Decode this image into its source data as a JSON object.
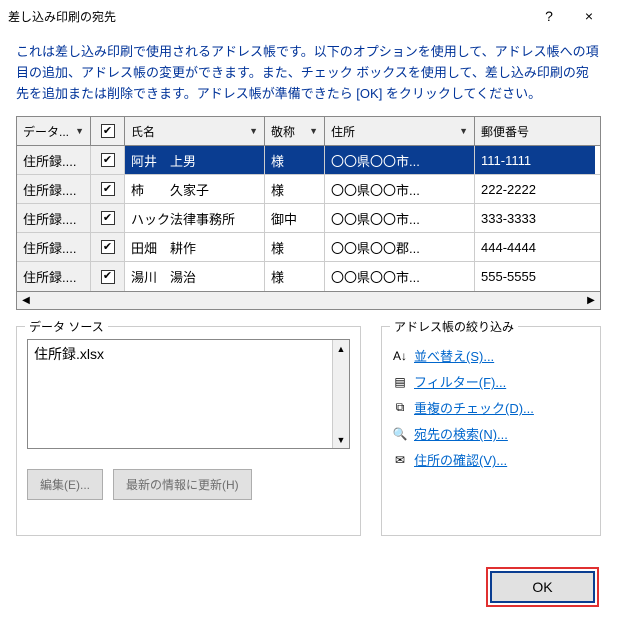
{
  "titlebar": {
    "title": "差し込み印刷の宛先",
    "help": "?",
    "close": "×"
  },
  "description": "これは差し込み印刷で使用されるアドレス帳です。以下のオプションを使用して、アドレス帳への項目の追加、アドレス帳の変更ができます。また、チェック ボックスを使用して、差し込み印刷の宛先を追加または削除できます。アドレス帳が準備できたら [OK] をクリックしてください。",
  "columns": {
    "c0": "データ...",
    "c2": "氏名",
    "c3": "敬称",
    "c4": "住所",
    "c5": "郵便番号"
  },
  "rows": [
    {
      "src": "住所録....",
      "name": "阿井　上男",
      "hon": "様",
      "addr": "〇〇県〇〇市...",
      "zip": "111-1111",
      "sel": true
    },
    {
      "src": "住所録....",
      "name": "柿　　久家子",
      "hon": "様",
      "addr": "〇〇県〇〇市...",
      "zip": "222-2222",
      "sel": false
    },
    {
      "src": "住所録....",
      "name": "ハック法律事務所",
      "hon": "御中",
      "addr": "〇〇県〇〇市...",
      "zip": "333-3333",
      "sel": false
    },
    {
      "src": "住所録....",
      "name": "田畑　耕作",
      "hon": "様",
      "addr": "〇〇県〇〇郡...",
      "zip": "444-4444",
      "sel": false
    },
    {
      "src": "住所録....",
      "name": "湯川　湯治",
      "hon": "様",
      "addr": "〇〇県〇〇市...",
      "zip": "555-5555",
      "sel": false
    }
  ],
  "datasource": {
    "group_label": "データ ソース",
    "item": "住所録.xlsx",
    "edit_btn": "編集(E)...",
    "refresh_btn": "最新の情報に更新(H)"
  },
  "refine": {
    "group_label": "アドレス帳の絞り込み",
    "sort": "並べ替え(S)...",
    "filter": "フィルター(F)...",
    "dup": "重複のチェック(D)...",
    "find": "宛先の検索(N)...",
    "validate": "住所の確認(V)..."
  },
  "ok_label": "OK",
  "colors": {
    "sel_bg": "#0a3d91",
    "sel_fg": "#ffffff",
    "link": "#0066cc",
    "highlight_border": "#e03030"
  }
}
